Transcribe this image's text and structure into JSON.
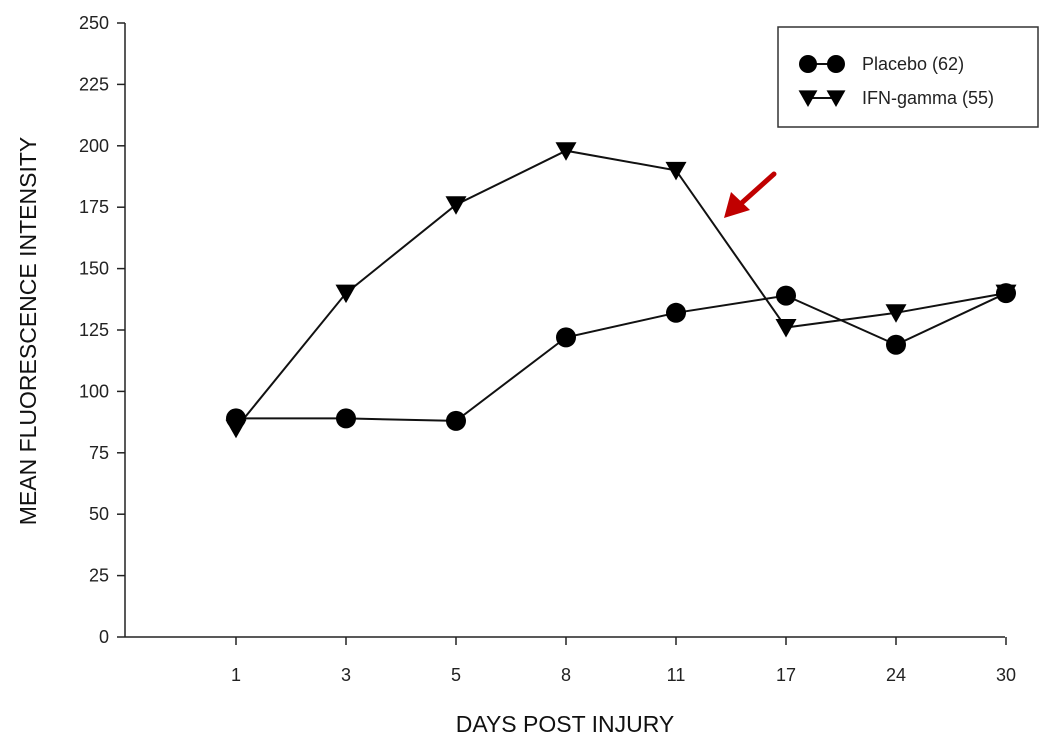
{
  "chart_data": {
    "type": "line",
    "xlabel": "DAYS POST INJURY",
    "ylabel": "MEAN FLUORESCENCE INTENSITY",
    "categories": [
      "1",
      "3",
      "5",
      "8",
      "11",
      "17",
      "24",
      "30"
    ],
    "y_ticks": [
      "0",
      "25",
      "50",
      "75",
      "100",
      "125",
      "150",
      "175",
      "200",
      "225",
      "250"
    ],
    "ylim": [
      0,
      250
    ],
    "grid": false,
    "legend_position": "top-right",
    "series": [
      {
        "name": "Placebo (62)",
        "marker": "circle",
        "values": [
          89,
          89,
          88,
          122,
          132,
          139,
          119,
          140
        ]
      },
      {
        "name": "IFN-gamma (55)",
        "marker": "triangle-down",
        "values": [
          85,
          140,
          176,
          198,
          190,
          126,
          132,
          140
        ]
      }
    ],
    "annotation": {
      "type": "arrow",
      "color": "#c00000",
      "points_to_category": "11"
    }
  }
}
